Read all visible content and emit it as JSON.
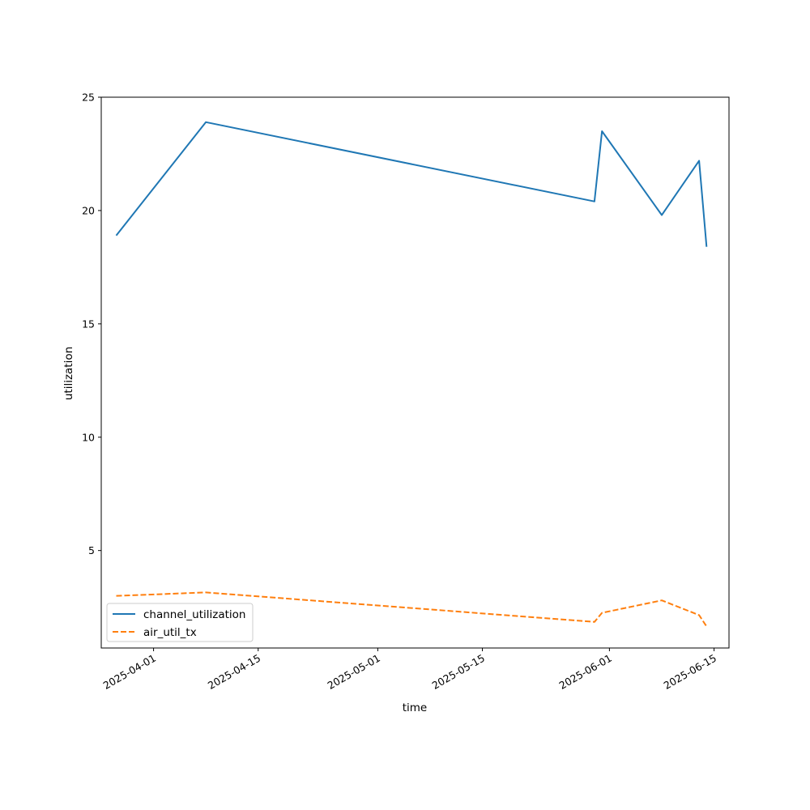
{
  "chart_data": {
    "type": "line",
    "xlabel": "time",
    "ylabel": "utilization",
    "x_scale": "date",
    "xlim": [
      "2025-03-25",
      "2025-06-17"
    ],
    "ylim": [
      0.7,
      25
    ],
    "x_ticks": [
      "2025-04-01",
      "2025-04-15",
      "2025-05-01",
      "2025-05-15",
      "2025-06-01",
      "2025-06-15"
    ],
    "y_ticks": [
      5,
      10,
      15,
      20,
      25
    ],
    "grid": false,
    "legend_position": "lower-left",
    "series": [
      {
        "name": "channel_utilization",
        "color": "#1f77b4",
        "line_style": "solid",
        "points": [
          {
            "x": "2025-03-27",
            "y": 18.9
          },
          {
            "x": "2025-04-08",
            "y": 23.9
          },
          {
            "x": "2025-05-30",
            "y": 20.4
          },
          {
            "x": "2025-05-31",
            "y": 23.5
          },
          {
            "x": "2025-06-08",
            "y": 19.8
          },
          {
            "x": "2025-06-13",
            "y": 22.2
          },
          {
            "x": "2025-06-14",
            "y": 18.4
          }
        ]
      },
      {
        "name": "air_util_tx",
        "color": "#ff7f0e",
        "line_style": "dashed",
        "points": [
          {
            "x": "2025-03-27",
            "y": 3.0
          },
          {
            "x": "2025-04-08",
            "y": 3.15
          },
          {
            "x": "2025-05-30",
            "y": 1.85
          },
          {
            "x": "2025-05-31",
            "y": 2.25
          },
          {
            "x": "2025-06-08",
            "y": 2.8
          },
          {
            "x": "2025-06-13",
            "y": 2.15
          },
          {
            "x": "2025-06-14",
            "y": 1.65
          }
        ]
      }
    ]
  }
}
